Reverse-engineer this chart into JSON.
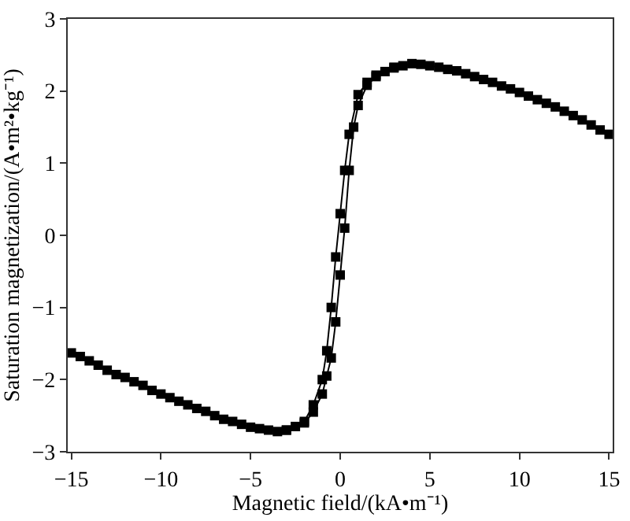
{
  "chart_data": {
    "type": "line",
    "xlabel": "Magnetic field/(kA•m⁻¹)",
    "ylabel": "Saturation magnetization/(A•m²•kg⁻¹)",
    "xlim": [
      -15.2,
      15.2
    ],
    "ylim": [
      -3,
      3
    ],
    "xticks": [
      -15,
      -10,
      -5,
      0,
      5,
      10,
      15
    ],
    "yticks": [
      -3,
      -2,
      -1,
      0,
      1,
      2,
      3
    ],
    "marker": "square",
    "line_style": "solid",
    "series": [
      {
        "color": "#000000",
        "x": [
          -15,
          -14.5,
          -14,
          -13.5,
          -13,
          -12.5,
          -12,
          -11.5,
          -11,
          -10.5,
          -10,
          -9.5,
          -9,
          -8.5,
          -8,
          -7.5,
          -7,
          -6.5,
          -6,
          -5.5,
          -5,
          -4.5,
          -4,
          -3.5,
          -3,
          -2.5,
          -2,
          -1.5,
          -1,
          -0.75,
          -0.5,
          -0.25,
          0,
          0.25,
          0.5,
          0.75,
          1,
          1.5,
          2,
          2.5,
          3,
          3.5,
          4,
          4.5,
          5,
          5.5,
          6,
          6.5,
          7,
          7.5,
          8,
          8.5,
          9,
          9.5,
          10,
          10.5,
          11,
          11.5,
          12,
          12.5,
          13,
          13.5,
          14,
          14.5,
          15
        ],
        "values": [
          -1.63,
          -1.68,
          -1.74,
          -1.8,
          -1.87,
          -1.93,
          -1.97,
          -2.03,
          -2.08,
          -2.15,
          -2.2,
          -2.25,
          -2.3,
          -2.35,
          -2.4,
          -2.44,
          -2.5,
          -2.55,
          -2.58,
          -2.62,
          -2.66,
          -2.68,
          -2.7,
          -2.72,
          -2.7,
          -2.65,
          -2.6,
          -2.45,
          -2.2,
          -1.95,
          -1.7,
          -1.2,
          -0.55,
          0.1,
          0.9,
          1.5,
          1.8,
          2.08,
          2.2,
          2.27,
          2.32,
          2.35,
          2.38,
          2.37,
          2.35,
          2.33,
          2.3,
          2.28,
          2.24,
          2.2,
          2.16,
          2.12,
          2.07,
          2.03,
          1.98,
          1.93,
          1.88,
          1.83,
          1.78,
          1.72,
          1.66,
          1.6,
          1.53,
          1.46,
          1.4
        ]
      },
      {
        "color": "#000000",
        "x": [
          3,
          2,
          1.5,
          1,
          0.5,
          0.25,
          0,
          -0.25,
          -0.5,
          -0.75,
          -1,
          -1.5,
          -2,
          -3
        ],
        "values": [
          2.33,
          2.22,
          2.12,
          1.95,
          1.4,
          0.9,
          0.3,
          -0.3,
          -1.0,
          -1.6,
          -2.0,
          -2.35,
          -2.58,
          -2.7
        ]
      }
    ]
  }
}
